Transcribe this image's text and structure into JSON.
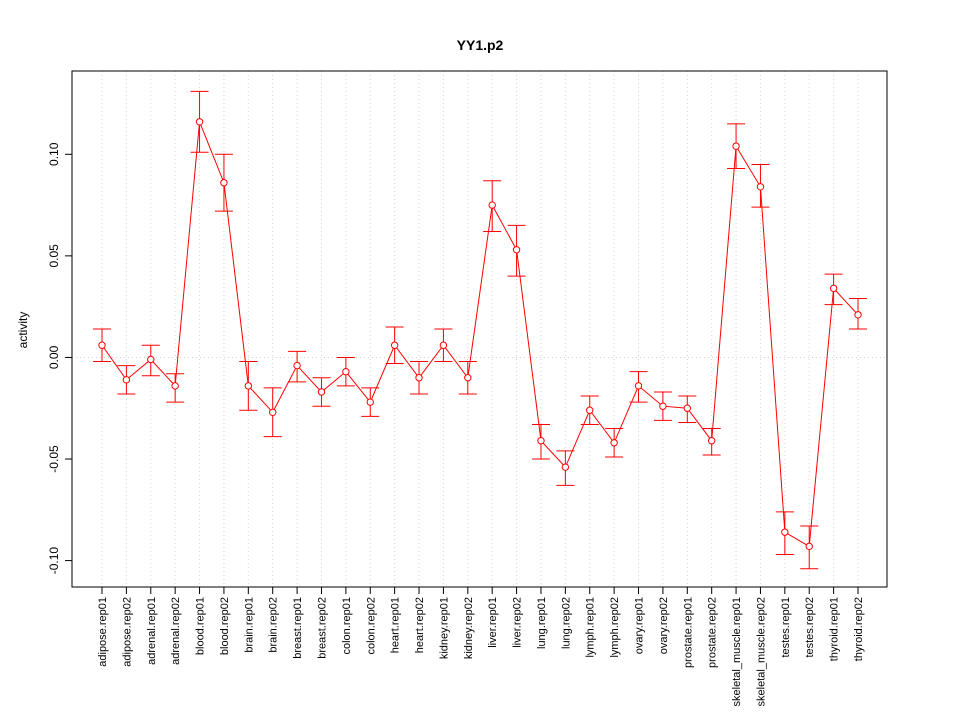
{
  "chart_data": {
    "type": "line",
    "title": "YY1.p2",
    "xlabel": "",
    "ylabel": "activity",
    "ylim": [
      -0.113,
      0.141
    ],
    "yticks": [
      -0.1,
      -0.05,
      0.0,
      0.05,
      0.1
    ],
    "ytick_labels": [
      "-0.10",
      "-0.05",
      "0.00",
      "0.05",
      "0.10"
    ],
    "grid": true,
    "color": "#ff0000",
    "grid_color": "#d3d3d3",
    "categories": [
      "adipose.rep01",
      "adipose.rep02",
      "adrenal.rep01",
      "adrenal.rep02",
      "blood.rep01",
      "blood.rep02",
      "brain.rep01",
      "brain.rep02",
      "breast.rep01",
      "breast.rep02",
      "colon.rep01",
      "colon.rep02",
      "heart.rep01",
      "heart.rep02",
      "kidney.rep01",
      "kidney.rep02",
      "liver.rep01",
      "liver.rep02",
      "lung.rep01",
      "lung.rep02",
      "lymph.rep01",
      "lymph.rep02",
      "ovary.rep01",
      "ovary.rep02",
      "prostate.rep01",
      "prostate.rep02",
      "skeletal_muscle.rep01",
      "skeletal_muscle.rep02",
      "testes.rep01",
      "testes.rep02",
      "thyroid.rep01",
      "thyroid.rep02"
    ],
    "values": [
      0.006,
      -0.011,
      -0.001,
      -0.014,
      0.116,
      0.086,
      -0.014,
      -0.027,
      -0.004,
      -0.017,
      -0.007,
      -0.022,
      0.006,
      -0.01,
      0.006,
      -0.01,
      0.075,
      0.053,
      -0.041,
      -0.054,
      -0.026,
      -0.042,
      -0.014,
      -0.024,
      -0.025,
      -0.041,
      0.104,
      0.084,
      -0.086,
      -0.093,
      0.034,
      0.021
    ],
    "lower": [
      -0.002,
      -0.018,
      -0.009,
      -0.022,
      0.101,
      0.072,
      -0.026,
      -0.039,
      -0.012,
      -0.024,
      -0.014,
      -0.029,
      -0.003,
      -0.018,
      -0.002,
      -0.018,
      0.062,
      0.04,
      -0.05,
      -0.063,
      -0.033,
      -0.049,
      -0.022,
      -0.031,
      -0.032,
      -0.048,
      0.093,
      0.074,
      -0.097,
      -0.104,
      0.026,
      0.014
    ],
    "upper": [
      0.014,
      -0.004,
      0.006,
      -0.008,
      0.131,
      0.1,
      -0.002,
      -0.015,
      0.003,
      -0.01,
      0.0,
      -0.015,
      0.015,
      -0.002,
      0.014,
      -0.002,
      0.087,
      0.065,
      -0.033,
      -0.046,
      -0.019,
      -0.035,
      -0.007,
      -0.017,
      -0.019,
      -0.035,
      0.115,
      0.095,
      -0.076,
      -0.083,
      0.041,
      0.029
    ]
  }
}
